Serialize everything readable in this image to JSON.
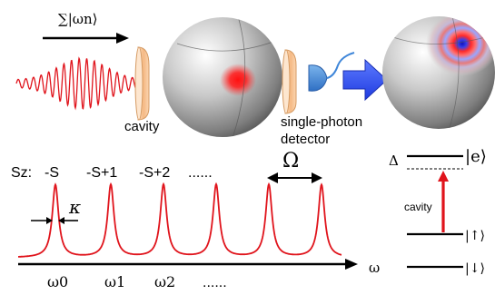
{
  "top": {
    "sum_label": "∑|ωn⟩",
    "cavity_label": "cavity",
    "detector_label_line1": "single-photon",
    "detector_label_line2": "detector"
  },
  "spectrum": {
    "sz_label": "Sz:",
    "peak_labels": [
      "-S",
      "-S+1",
      "-S+2",
      "......"
    ],
    "kappa_label": "κ",
    "omega_label": "Ω",
    "axis_label": "ω",
    "freq_labels": [
      "ω0",
      "ω1",
      "ω2",
      "......"
    ],
    "freq_subscripts": [
      "0",
      "1",
      "2"
    ]
  },
  "levels": {
    "delta_label": "Δ",
    "excited_label": "|e⟩",
    "cavity_label": "cavity",
    "up_label": "|↑⟩",
    "down_label": "|↓⟩"
  },
  "colors": {
    "wave": "#e0141c",
    "peaks": "#e0141c",
    "arrow_blue": "#2e4ff0",
    "mirror": "#f6c89a",
    "detector": "#3f86d9"
  }
}
